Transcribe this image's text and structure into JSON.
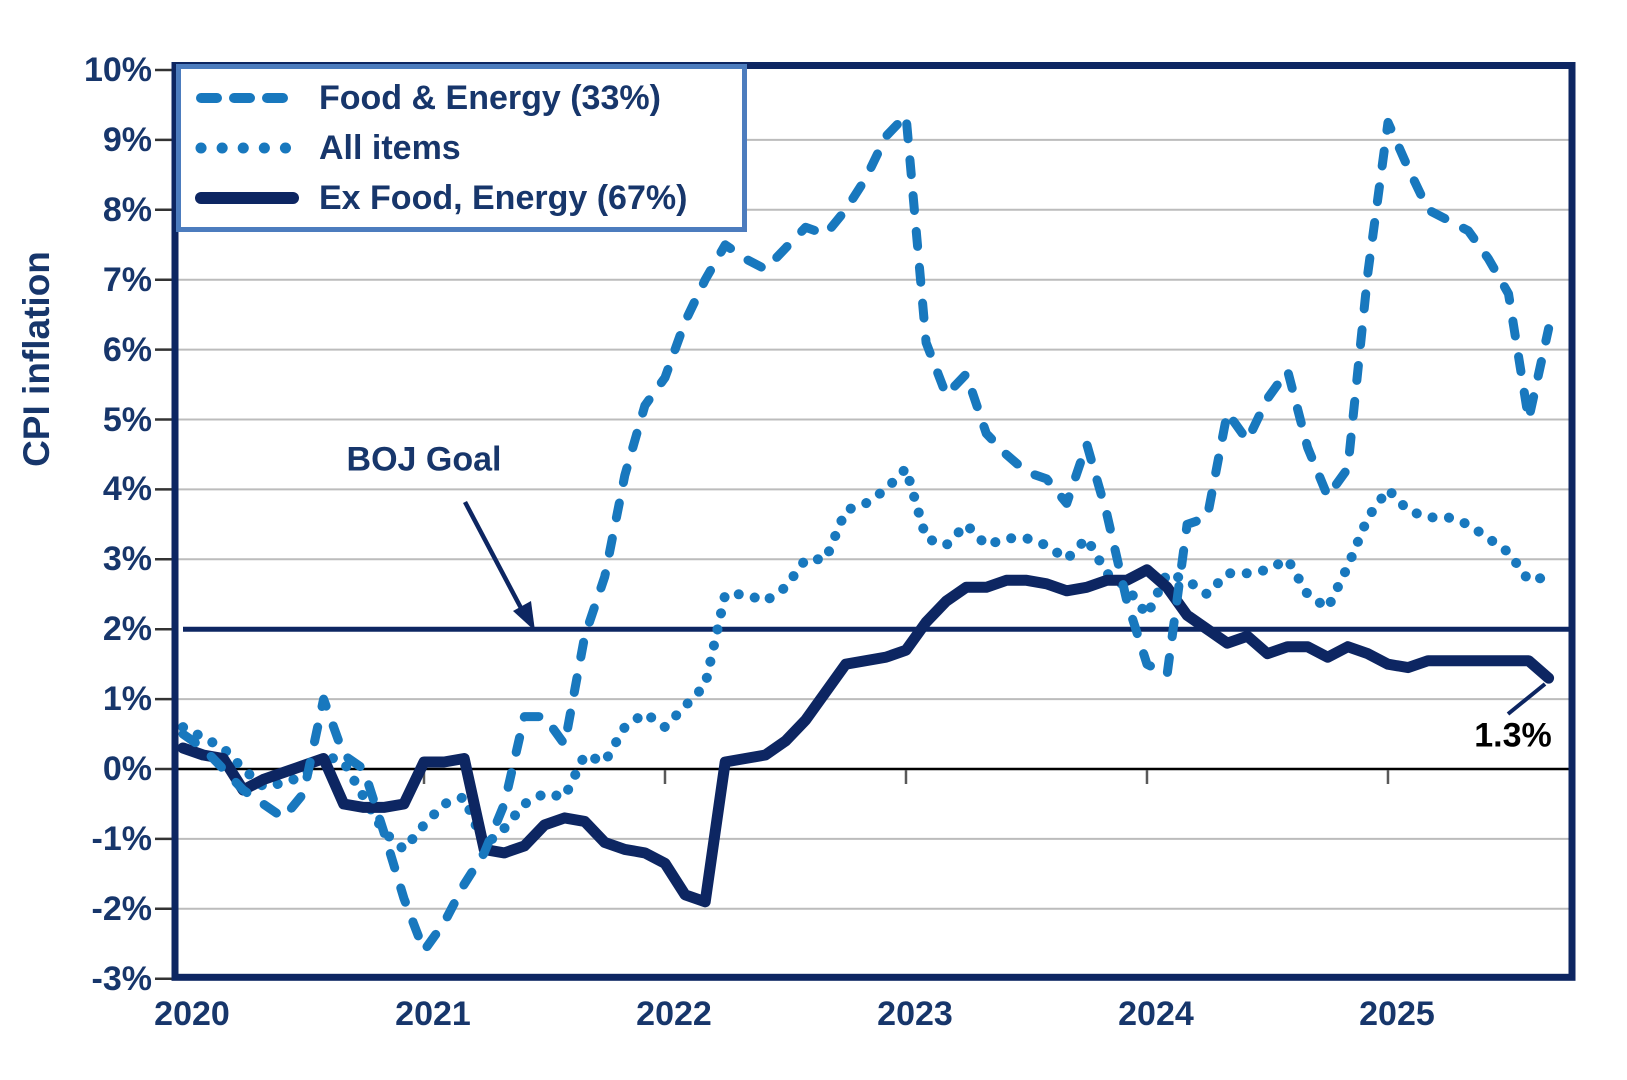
{
  "chart_data": {
    "type": "line",
    "title": "",
    "ylabel": "CPI inflation",
    "x_unit": "month",
    "x_start_year": 2020,
    "x_tick_labels": [
      "2020",
      "2021",
      "2022",
      "2023",
      "2024",
      "2025"
    ],
    "y_tick_labels": [
      "10%",
      "9%",
      "8%",
      "7%",
      "6%",
      "5%",
      "4%",
      "3%",
      "2%",
      "1%",
      "0%",
      "-1%",
      "-2%",
      "-3%"
    ],
    "y_tick_values": [
      10,
      9,
      8,
      7,
      6,
      5,
      4,
      3,
      2,
      1,
      0,
      -1,
      -2,
      -3
    ],
    "ylim": [
      -3,
      10
    ],
    "grid": true,
    "legend_position": "top-left",
    "series": [
      {
        "name": "Food & Energy (33%)",
        "style": "dashed",
        "color": "#1878BE",
        "values": [
          0.5,
          0.3,
          0.0,
          -0.3,
          -0.5,
          -0.7,
          -0.35,
          1.0,
          0.2,
          0.0,
          -0.9,
          -1.85,
          -2.6,
          -2.2,
          -1.65,
          -1.2,
          -0.5,
          0.75,
          0.75,
          0.35,
          1.9,
          2.75,
          4.2,
          5.2,
          5.6,
          6.4,
          7.0,
          7.5,
          7.3,
          7.15,
          7.45,
          7.75,
          7.65,
          8.0,
          8.45,
          9.05,
          9.35,
          6.1,
          5.35,
          5.65,
          4.8,
          4.5,
          4.25,
          4.15,
          3.8,
          4.65,
          3.65,
          2.4,
          1.5,
          1.35,
          3.5,
          3.6,
          5.1,
          4.7,
          5.3,
          5.7,
          4.6,
          3.9,
          4.3,
          7.1,
          9.25,
          8.6,
          8.0,
          7.85,
          7.7,
          7.3,
          6.8,
          5.0,
          6.3
        ]
      },
      {
        "name": "All items",
        "style": "dotted",
        "color": "#1878BE",
        "values": [
          0.6,
          0.45,
          0.3,
          0.0,
          -0.25,
          -0.2,
          -0.1,
          0.2,
          0.1,
          -0.4,
          -0.9,
          -1.15,
          -0.8,
          -0.5,
          -0.4,
          -1.1,
          -0.85,
          -0.5,
          -0.35,
          -0.4,
          0.2,
          0.1,
          0.6,
          0.8,
          0.6,
          0.9,
          1.2,
          2.5,
          2.5,
          2.4,
          2.6,
          3.0,
          3.0,
          3.7,
          3.8,
          4.0,
          4.3,
          3.3,
          3.2,
          3.5,
          3.2,
          3.3,
          3.3,
          3.2,
          3.0,
          3.3,
          2.8,
          2.6,
          2.2,
          2.8,
          2.7,
          2.5,
          2.8,
          2.8,
          2.85,
          3.0,
          2.5,
          2.3,
          2.9,
          3.6,
          4.0,
          3.7,
          3.6,
          3.6,
          3.5,
          3.3,
          3.1,
          2.7,
          2.75
        ]
      },
      {
        "name": "Ex Food, Energy (67%)",
        "style": "solid",
        "color": "#0D2662",
        "values": [
          0.3,
          0.2,
          0.15,
          -0.3,
          -0.15,
          -0.05,
          0.05,
          0.15,
          -0.5,
          -0.55,
          -0.55,
          -0.5,
          0.1,
          0.1,
          0.15,
          -1.15,
          -1.2,
          -1.1,
          -0.8,
          -0.7,
          -0.75,
          -1.05,
          -1.15,
          -1.2,
          -1.35,
          -1.8,
          -1.9,
          0.1,
          0.15,
          0.2,
          0.4,
          0.7,
          1.1,
          1.5,
          1.55,
          1.6,
          1.7,
          2.1,
          2.4,
          2.6,
          2.6,
          2.7,
          2.7,
          2.65,
          2.55,
          2.6,
          2.7,
          2.7,
          2.85,
          2.6,
          2.2,
          2.0,
          1.8,
          1.9,
          1.65,
          1.75,
          1.75,
          1.6,
          1.75,
          1.65,
          1.5,
          1.45,
          1.55,
          1.55,
          1.55,
          1.55,
          1.55,
          1.55,
          1.3
        ]
      }
    ],
    "annotations": {
      "boj_goal": {
        "label": "BOJ Goal",
        "value": 2
      },
      "last_value_label": "1.3%"
    },
    "colors": {
      "grid": "#BCBCBC",
      "zero_axis": "#000000",
      "frame": "#0D2662",
      "text": "#17366B",
      "legend_border": "#4C7CBE",
      "end_label_text": "#000000"
    }
  }
}
